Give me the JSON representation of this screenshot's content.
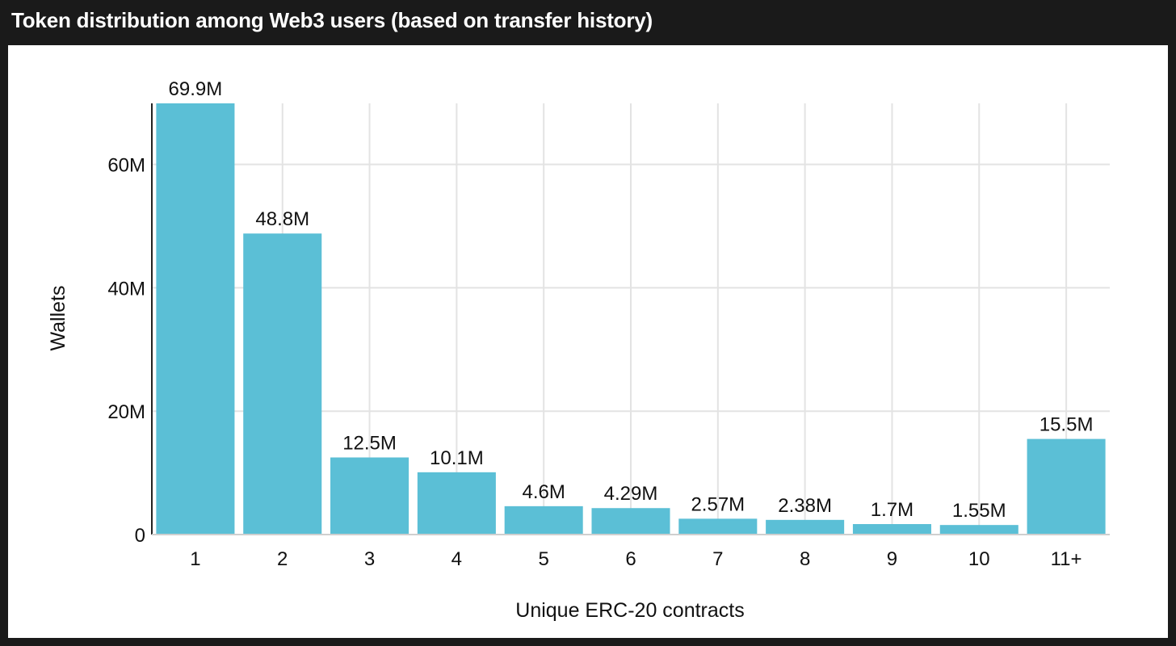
{
  "window": {
    "title": "Token distribution among Web3 users (based on transfer history)"
  },
  "chart_data": {
    "type": "bar",
    "title": "",
    "xlabel": "Unique ERC-20 contracts",
    "ylabel": "Wallets",
    "categories": [
      "1",
      "2",
      "3",
      "4",
      "5",
      "6",
      "7",
      "8",
      "9",
      "10",
      "11+"
    ],
    "values": [
      69.9,
      48.8,
      12.5,
      10.1,
      4.6,
      4.29,
      2.57,
      2.38,
      1.7,
      1.55,
      15.5
    ],
    "value_unit": "M",
    "data_labels": [
      "69.9M",
      "48.8M",
      "12.5M",
      "10.1M",
      "4.6M",
      "4.29M",
      "2.57M",
      "2.38M",
      "1.7M",
      "1.55M",
      "15.5M"
    ],
    "yticks": [
      0,
      20,
      40,
      60
    ],
    "ytick_labels": [
      "0",
      "20M",
      "40M",
      "60M"
    ],
    "ylim": [
      0,
      69.9
    ],
    "grid": true,
    "bar_color": "#5bbfd6"
  }
}
